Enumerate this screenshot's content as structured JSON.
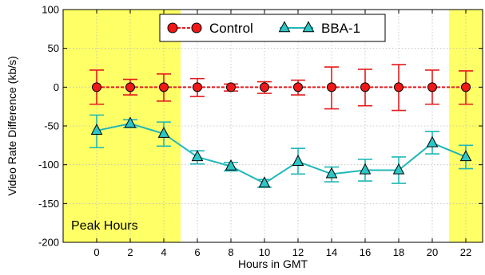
{
  "chart_data": {
    "type": "line",
    "title": "",
    "xlabel": "Hours in GMT",
    "ylabel": "Video Rate Difference (kb/s)",
    "x": [
      0,
      2,
      4,
      6,
      8,
      10,
      12,
      14,
      16,
      18,
      20,
      22
    ],
    "xlim": [
      -2,
      23
    ],
    "ylim": [
      -200,
      100
    ],
    "xticks": [
      0,
      2,
      4,
      6,
      8,
      10,
      12,
      14,
      16,
      18,
      20,
      22
    ],
    "yticks": [
      -200,
      -150,
      -100,
      -50,
      0,
      50,
      100
    ],
    "grid": true,
    "legend_position": "top-center",
    "series": [
      {
        "name": "Control",
        "color": "#e41a1c",
        "marker": "circle",
        "values": [
          0,
          0,
          0,
          0,
          0,
          0,
          0,
          0,
          0,
          0,
          0,
          0
        ],
        "error_low": [
          -22,
          -10,
          -18,
          -12,
          -5,
          -8,
          -10,
          -28,
          -24,
          -30,
          -22,
          -22
        ],
        "error_high": [
          22,
          10,
          17,
          11,
          4,
          7,
          9,
          26,
          23,
          29,
          22,
          21
        ]
      },
      {
        "name": "BBA-1",
        "color": "#20b7b7",
        "marker": "triangle",
        "values": [
          -56,
          -47,
          -60,
          -90,
          -102,
          -124,
          -96,
          -112,
          -107,
          -107,
          -72,
          -90
        ],
        "error_low": [
          -78,
          -52,
          -76,
          -99,
          -108,
          -129,
          -112,
          -122,
          -121,
          -124,
          -86,
          -105
        ],
        "error_high": [
          -36,
          -42,
          -45,
          -82,
          -97,
          -119,
          -79,
          -103,
          -93,
          -90,
          -57,
          -75
        ]
      }
    ],
    "shaded_regions": [
      {
        "x_start": -2,
        "x_end": 5,
        "color": "#ffff66"
      },
      {
        "x_start": 21,
        "x_end": 23,
        "color": "#ffff66"
      }
    ],
    "annotation": "Peak Hours"
  }
}
